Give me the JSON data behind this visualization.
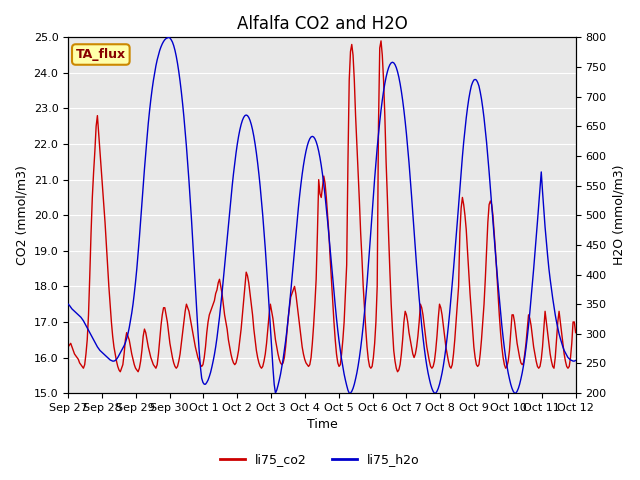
{
  "title": "Alfalfa CO2 and H2O",
  "xlabel": "Time",
  "ylabel_left": "CO2 (mmol/m3)",
  "ylabel_right": "H2O (mmol/m3)",
  "co2_ylim": [
    15.0,
    25.0
  ],
  "h2o_ylim": [
    200,
    800
  ],
  "co2_yticks": [
    15.0,
    16.0,
    17.0,
    18.0,
    19.0,
    20.0,
    21.0,
    22.0,
    23.0,
    24.0,
    25.0
  ],
  "h2o_yticks": [
    200,
    250,
    300,
    350,
    400,
    450,
    500,
    550,
    600,
    650,
    700,
    750,
    800
  ],
  "xtick_labels": [
    "Sep 27",
    "Sep 28",
    "Sep 29",
    "Sep 30",
    "Oct 1",
    "Oct 2",
    "Oct 3",
    "Oct 4",
    "Oct 5",
    "Oct 6",
    "Oct 7",
    "Oct 8",
    "Oct 9",
    "Oct 10",
    "Oct 11",
    "Oct 12"
  ],
  "co2_color": "#cc0000",
  "h2o_color": "#0000cc",
  "line_width": 1.0,
  "bg_color": "#e8e8e8",
  "fig_bg_color": "#ffffff",
  "legend_entries": [
    "li75_co2",
    "li75_h2o"
  ],
  "annotation_text": "TA_flux",
  "annotation_bg": "#ffffaa",
  "annotation_border": "#cc8800",
  "title_fontsize": 12,
  "axis_label_fontsize": 9,
  "tick_label_fontsize": 8,
  "legend_fontsize": 9,
  "co2_data": [
    16.3,
    16.35,
    16.4,
    16.3,
    16.2,
    16.1,
    16.05,
    16.0,
    15.95,
    15.85,
    15.8,
    15.75,
    15.7,
    15.8,
    16.1,
    16.5,
    17.2,
    18.3,
    19.5,
    20.5,
    21.2,
    21.8,
    22.5,
    22.8,
    22.3,
    21.8,
    21.3,
    20.8,
    20.3,
    19.8,
    19.2,
    18.6,
    18.0,
    17.5,
    17.0,
    16.6,
    16.3,
    16.1,
    15.9,
    15.75,
    15.65,
    15.6,
    15.7,
    15.8,
    16.1,
    16.5,
    16.7,
    16.6,
    16.5,
    16.3,
    16.1,
    15.95,
    15.8,
    15.7,
    15.65,
    15.6,
    15.7,
    15.9,
    16.2,
    16.6,
    16.8,
    16.7,
    16.5,
    16.3,
    16.15,
    16.0,
    15.9,
    15.8,
    15.75,
    15.7,
    15.8,
    16.1,
    16.5,
    16.9,
    17.2,
    17.4,
    17.4,
    17.2,
    17.0,
    16.7,
    16.4,
    16.2,
    16.0,
    15.85,
    15.75,
    15.7,
    15.75,
    15.9,
    16.1,
    16.4,
    16.7,
    17.0,
    17.3,
    17.5,
    17.4,
    17.3,
    17.1,
    16.9,
    16.7,
    16.5,
    16.3,
    16.15,
    16.0,
    15.9,
    15.8,
    15.75,
    15.8,
    16.0,
    16.3,
    16.7,
    17.0,
    17.2,
    17.3,
    17.4,
    17.5,
    17.6,
    17.8,
    17.9,
    18.1,
    18.2,
    18.0,
    17.8,
    17.5,
    17.2,
    17.0,
    16.8,
    16.5,
    16.3,
    16.1,
    15.95,
    15.85,
    15.8,
    15.85,
    16.0,
    16.2,
    16.5,
    16.8,
    17.2,
    17.6,
    18.0,
    18.4,
    18.3,
    18.1,
    17.8,
    17.5,
    17.2,
    16.8,
    16.5,
    16.2,
    16.0,
    15.85,
    15.75,
    15.7,
    15.75,
    15.9,
    16.1,
    16.4,
    16.8,
    17.2,
    17.5,
    17.3,
    17.1,
    16.8,
    16.5,
    16.3,
    16.1,
    15.95,
    15.85,
    15.8,
    15.85,
    16.0,
    16.3,
    16.7,
    17.1,
    17.4,
    17.7,
    17.8,
    17.9,
    18.0,
    17.8,
    17.5,
    17.2,
    16.9,
    16.6,
    16.3,
    16.1,
    15.95,
    15.85,
    15.8,
    15.75,
    15.8,
    16.0,
    16.4,
    16.9,
    17.5,
    18.2,
    19.5,
    21.0,
    20.6,
    20.5,
    20.8,
    21.1,
    20.9,
    20.5,
    20.0,
    19.5,
    18.8,
    18.2,
    17.6,
    17.0,
    16.5,
    16.1,
    15.85,
    15.75,
    15.8,
    16.1,
    16.5,
    17.0,
    17.8,
    18.6,
    21.5,
    23.8,
    24.6,
    24.8,
    24.5,
    23.8,
    22.8,
    22.0,
    21.2,
    20.4,
    19.5,
    18.8,
    18.0,
    17.4,
    16.8,
    16.3,
    15.95,
    15.75,
    15.7,
    15.75,
    16.0,
    16.4,
    17.0,
    18.0,
    22.5,
    24.7,
    24.9,
    24.5,
    23.8,
    22.8,
    21.5,
    20.5,
    19.4,
    18.4,
    17.5,
    16.8,
    16.2,
    15.9,
    15.7,
    15.6,
    15.65,
    15.8,
    16.1,
    16.5,
    17.0,
    17.3,
    17.2,
    17.0,
    16.7,
    16.5,
    16.3,
    16.1,
    16.0,
    16.1,
    16.3,
    16.6,
    17.0,
    17.5,
    17.4,
    17.2,
    16.9,
    16.6,
    16.3,
    16.1,
    15.9,
    15.75,
    15.7,
    15.75,
    15.9,
    16.2,
    16.6,
    17.1,
    17.5,
    17.4,
    17.2,
    16.9,
    16.6,
    16.3,
    16.1,
    15.9,
    15.75,
    15.7,
    15.8,
    16.1,
    16.5,
    17.0,
    17.5,
    18.0,
    19.5,
    20.2,
    20.5,
    20.3,
    20.0,
    19.6,
    19.0,
    18.4,
    17.8,
    17.3,
    16.8,
    16.3,
    16.0,
    15.8,
    15.75,
    15.8,
    16.1,
    16.5,
    17.0,
    17.5,
    18.2,
    19.0,
    19.8,
    20.3,
    20.4,
    20.3,
    20.0,
    19.5,
    19.0,
    18.4,
    17.8,
    17.2,
    16.7,
    16.3,
    16.0,
    15.8,
    15.7,
    15.75,
    15.9,
    16.2,
    16.7,
    17.2,
    17.2,
    17.0,
    16.7,
    16.4,
    16.2,
    16.0,
    15.85,
    15.8,
    15.85,
    16.1,
    16.4,
    16.8,
    17.2,
    17.1,
    16.9,
    16.6,
    16.3,
    16.1,
    15.9,
    15.75,
    15.7,
    15.75,
    15.95,
    16.3,
    16.8,
    17.3,
    17.0,
    16.7,
    16.4,
    16.1,
    15.9,
    15.75,
    15.7,
    16.0,
    16.5,
    17.0,
    17.3,
    17.0,
    16.7,
    16.4,
    16.1,
    15.9,
    15.75,
    15.7,
    15.75,
    16.0,
    16.4,
    17.0,
    17.0,
    16.7
  ],
  "h2o_data": [
    350,
    348,
    345,
    342,
    340,
    338,
    336,
    334,
    332,
    330,
    328,
    325,
    322,
    318,
    314,
    310,
    306,
    302,
    298,
    294,
    290,
    286,
    282,
    278,
    275,
    272,
    270,
    268,
    266,
    264,
    262,
    260,
    258,
    256,
    255,
    254,
    254,
    255,
    257,
    260,
    264,
    268,
    272,
    276,
    280,
    285,
    292,
    300,
    310,
    322,
    335,
    350,
    368,
    388,
    410,
    435,
    462,
    490,
    520,
    550,
    578,
    605,
    630,
    655,
    676,
    695,
    712,
    727,
    740,
    752,
    762,
    770,
    778,
    784,
    789,
    793,
    796,
    798,
    799,
    800,
    799,
    796,
    792,
    786,
    778,
    768,
    756,
    742,
    726,
    708,
    688,
    666,
    642,
    616,
    588,
    558,
    526,
    492,
    456,
    418,
    380,
    342,
    306,
    272,
    244,
    225,
    218,
    215,
    215,
    218,
    222,
    228,
    235,
    244,
    254,
    265,
    278,
    293,
    310,
    328,
    348,
    369,
    391,
    414,
    437,
    460,
    483,
    506,
    529,
    550,
    570,
    588,
    605,
    620,
    633,
    644,
    653,
    660,
    665,
    668,
    669,
    668,
    665,
    660,
    653,
    644,
    633,
    620,
    605,
    588,
    569,
    548,
    525,
    500,
    473,
    444,
    413,
    380,
    346,
    311,
    276,
    243,
    215,
    200,
    205,
    213,
    222,
    232,
    244,
    257,
    272,
    288,
    306,
    326,
    348,
    370,
    394,
    418,
    442,
    466,
    490,
    512,
    533,
    552,
    569,
    584,
    597,
    608,
    617,
    624,
    629,
    632,
    633,
    632,
    629,
    624,
    617,
    608,
    597,
    584,
    569,
    552,
    533,
    512,
    490,
    466,
    442,
    418,
    394,
    370,
    348,
    326,
    306,
    288,
    272,
    257,
    244,
    232,
    222,
    213,
    205,
    200,
    200,
    203,
    208,
    215,
    224,
    234,
    246,
    260,
    276,
    294,
    314,
    336,
    360,
    386,
    414,
    443,
    473,
    503,
    533,
    562,
    589,
    614,
    637,
    658,
    677,
    694,
    709,
    722,
    733,
    742,
    749,
    754,
    757,
    758,
    757,
    754,
    749,
    742,
    733,
    722,
    709,
    694,
    677,
    658,
    637,
    614,
    589,
    562,
    533,
    503,
    473,
    443,
    414,
    386,
    360,
    336,
    314,
    294,
    276,
    260,
    246,
    234,
    224,
    215,
    208,
    203,
    200,
    200,
    203,
    208,
    215,
    224,
    234,
    246,
    260,
    276,
    294,
    314,
    336,
    360,
    384,
    409,
    435,
    462,
    489,
    517,
    545,
    573,
    599,
    623,
    644,
    664,
    681,
    696,
    708,
    718,
    724,
    728,
    729,
    728,
    724,
    718,
    708,
    696,
    681,
    664,
    644,
    623,
    599,
    573,
    545,
    517,
    489,
    462,
    435,
    409,
    384,
    360,
    336,
    314,
    294,
    276,
    260,
    246,
    234,
    224,
    215,
    208,
    203,
    200,
    200,
    203,
    208,
    215,
    224,
    234,
    246,
    260,
    276,
    294,
    314,
    336,
    360,
    384,
    409,
    435,
    462,
    489,
    517,
    545,
    573,
    540,
    510,
    480,
    455,
    432,
    410,
    392,
    376,
    360,
    346,
    332,
    320,
    310,
    300,
    292,
    285,
    278,
    272,
    268,
    264,
    260,
    258,
    256,
    255,
    254,
    254,
    255
  ]
}
